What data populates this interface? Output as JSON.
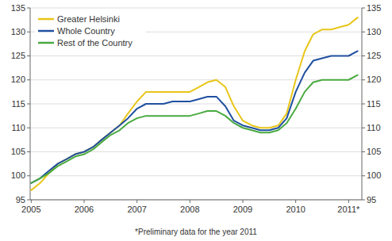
{
  "chart_data": {
    "type": "line",
    "annotations": [
      "*Preliminary data for the year 2011"
    ],
    "x": [
      2005.0,
      2005.17,
      2005.33,
      2005.5,
      2005.67,
      2005.83,
      2006.0,
      2006.17,
      2006.33,
      2006.5,
      2006.67,
      2006.83,
      2007.0,
      2007.17,
      2007.33,
      2007.5,
      2007.67,
      2007.83,
      2008.0,
      2008.17,
      2008.33,
      2008.5,
      2008.67,
      2008.83,
      2009.0,
      2009.17,
      2009.33,
      2009.5,
      2009.67,
      2009.83,
      2010.0,
      2010.17,
      2010.33,
      2010.5,
      2010.67,
      2010.83,
      2011.0,
      2011.17
    ],
    "series": [
      {
        "name": "Greater Helsinki",
        "color": "#e8c619",
        "values": [
          97.0,
          98.5,
          100.5,
          102.5,
          103.5,
          104.5,
          105.0,
          106.0,
          107.5,
          109.0,
          110.5,
          113.0,
          115.5,
          117.5,
          117.5,
          117.5,
          117.5,
          117.5,
          117.5,
          118.5,
          119.5,
          120.0,
          118.5,
          114.5,
          111.5,
          110.5,
          110.0,
          110.0,
          110.5,
          113.0,
          120.0,
          126.0,
          129.5,
          130.5,
          130.5,
          131.0,
          131.5,
          133.0
        ]
      },
      {
        "name": "Whole Country",
        "color": "#2050a0",
        "values": [
          98.5,
          99.5,
          101.0,
          102.5,
          103.5,
          104.5,
          105.0,
          106.0,
          107.5,
          109.0,
          110.5,
          112.0,
          114.0,
          115.0,
          115.0,
          115.0,
          115.5,
          115.5,
          115.5,
          116.0,
          116.5,
          116.5,
          114.5,
          111.5,
          110.5,
          110.0,
          109.5,
          109.5,
          110.0,
          112.0,
          117.5,
          121.5,
          124.0,
          124.5,
          125.0,
          125.0,
          125.0,
          126.0
        ]
      },
      {
        "name": "Rest of the Country",
        "color": "#4aaa40",
        "values": [
          98.5,
          99.5,
          100.5,
          102.0,
          103.0,
          104.0,
          104.5,
          105.5,
          107.0,
          108.5,
          109.5,
          111.0,
          112.0,
          112.5,
          112.5,
          112.5,
          112.5,
          112.5,
          112.5,
          113.0,
          113.5,
          113.5,
          112.5,
          111.0,
          110.0,
          109.5,
          109.0,
          109.0,
          109.5,
          111.0,
          114.0,
          117.5,
          119.5,
          120.0,
          120.0,
          120.0,
          120.0,
          121.0
        ]
      }
    ],
    "xlim": [
      2004.98,
      2011.25
    ],
    "xticks": [
      2005,
      2006,
      2007,
      2008,
      2009,
      2010,
      {
        "value": 2011,
        "label": "2011*"
      }
    ],
    "ylim": [
      95,
      135
    ],
    "yticks": [
      95,
      100,
      105,
      110,
      115,
      120,
      125,
      130,
      135
    ],
    "y2lim": [
      95,
      135
    ],
    "y2ticks": [
      95,
      100,
      105,
      110,
      115,
      120,
      125,
      130,
      135
    ],
    "grid": true,
    "legend": "upper left"
  }
}
